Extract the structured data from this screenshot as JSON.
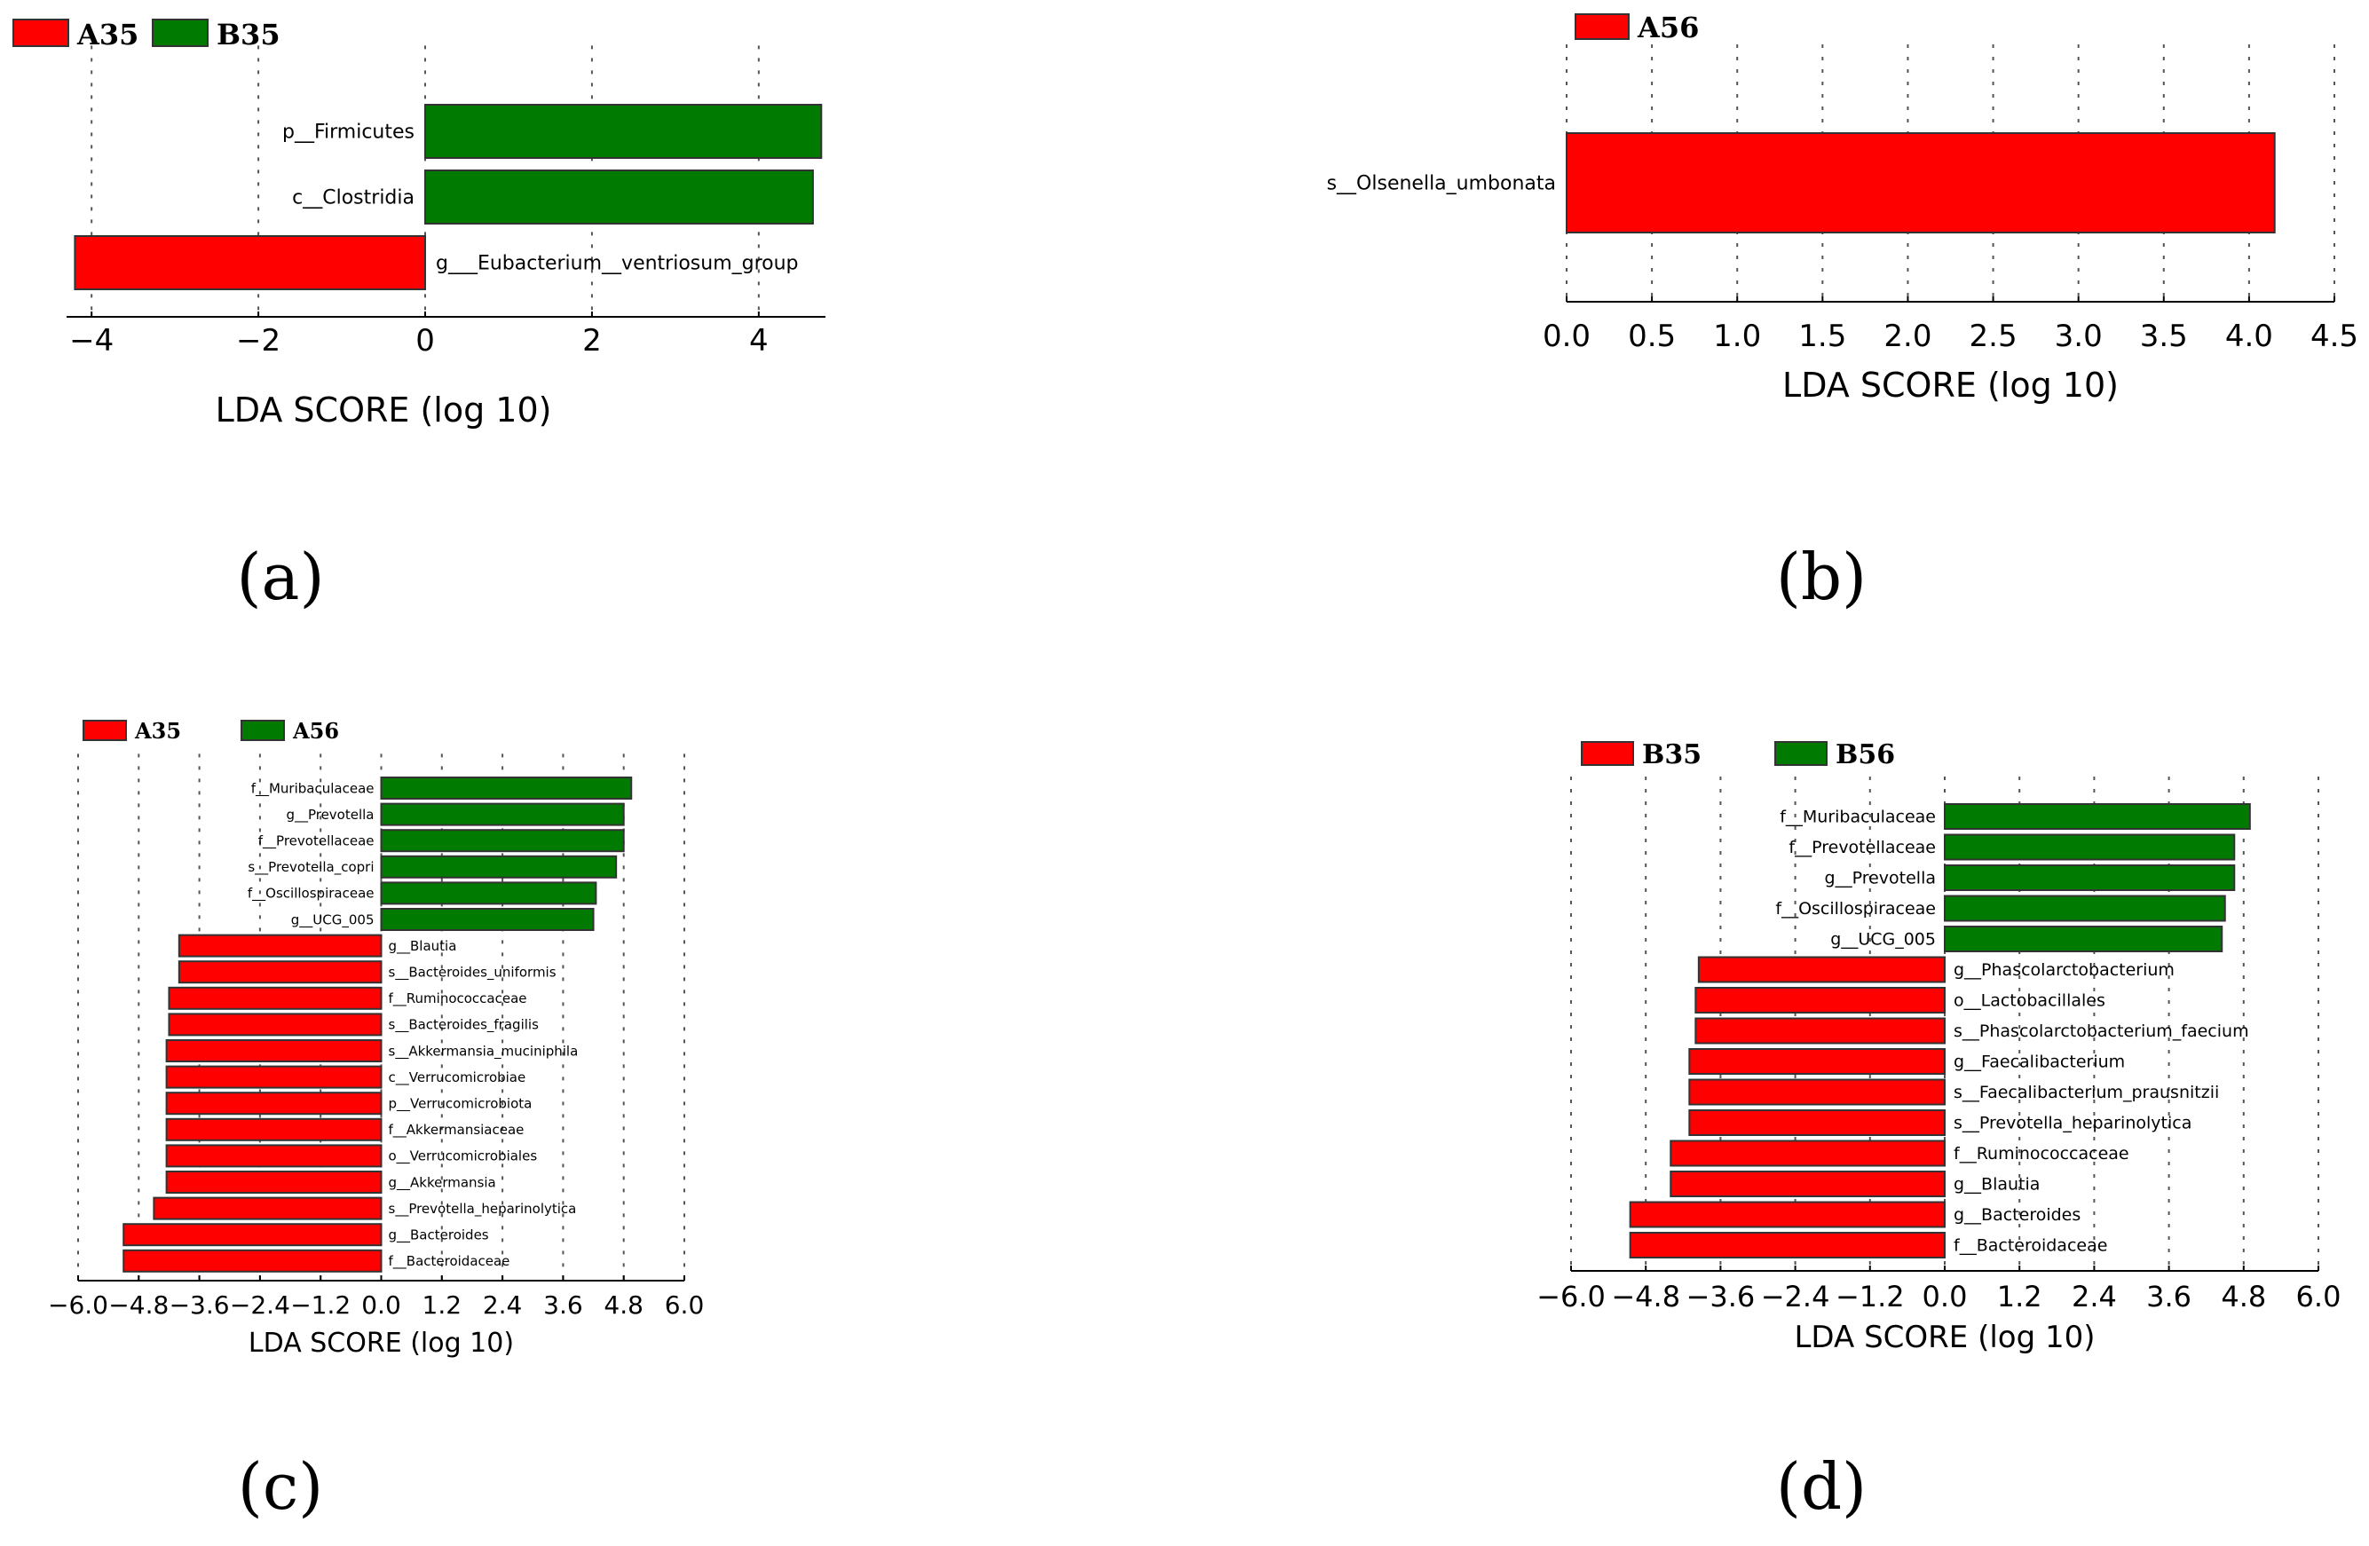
{
  "colors": {
    "red": "#ff0000",
    "green": "#007a00"
  },
  "chart_data": [
    {
      "panel": "(a)",
      "type": "bar",
      "orientation": "horizontal",
      "legend": [
        {
          "name": "A35",
          "color": "#ff0000"
        },
        {
          "name": "B35",
          "color": "#007a00"
        }
      ],
      "categories": [
        "p__Firmicutes",
        "c__Clostridia",
        "g___Eubacterium__ventriosum_group"
      ],
      "values": [
        4.75,
        4.65,
        -4.2
      ],
      "xlim": [
        -4.3,
        4.8
      ],
      "xticks": [
        -4,
        -2,
        0,
        2,
        4
      ],
      "xticklabels": [
        "−4",
        "−2",
        "0",
        "2",
        "4"
      ],
      "xlabel": "LDA SCORE (log 10)"
    },
    {
      "panel": "(b)",
      "type": "bar",
      "orientation": "horizontal",
      "legend": [
        {
          "name": "A56",
          "color": "#ff0000"
        }
      ],
      "categories": [
        "s__Olsenella_umbonata"
      ],
      "values": [
        4.15
      ],
      "xlim": [
        0.0,
        4.5
      ],
      "xticks": [
        0,
        0.5,
        1,
        1.5,
        2,
        2.5,
        3,
        3.5,
        4,
        4.5
      ],
      "xticklabels": [
        "0.0",
        "0.5",
        "1.0",
        "1.5",
        "2.0",
        "2.5",
        "3.0",
        "3.5",
        "4.0",
        "4.5"
      ],
      "xlabel": "LDA SCORE (log 10)"
    },
    {
      "panel": "(c)",
      "type": "bar",
      "orientation": "horizontal",
      "legend": [
        {
          "name": "A35",
          "color": "#ff0000"
        },
        {
          "name": "A56",
          "color": "#007a00"
        }
      ],
      "categories": [
        "f__Muribaculaceae",
        "g__Prevotella",
        "f__Prevotellaceae",
        "s__Prevotella_copri",
        "f__Oscillospiraceae",
        "g__UCG_005",
        "g__Blautia",
        "s__Bacteroides_uniformis",
        "f__Ruminococcaceae",
        "s__Bacteroides_fragilis",
        "s__Akkermansia_muciniphila",
        "c__Verrucomicrobiae",
        "p__Verrucomicrobiota",
        "f__Akkermansiaceae",
        "o__Verrucomicrobiales",
        "g__Akkermansia",
        "s__Prevotella_heparinolytica",
        "g__Bacteroides",
        "f__Bacteroidaceae"
      ],
      "values": [
        4.95,
        4.8,
        4.8,
        4.65,
        4.25,
        4.2,
        -4.0,
        -4.0,
        -4.2,
        -4.2,
        -4.25,
        -4.25,
        -4.25,
        -4.25,
        -4.25,
        -4.25,
        -4.5,
        -5.1,
        -5.1
      ],
      "xlim": [
        -6.0,
        6.0
      ],
      "xticks": [
        -6.0,
        -4.8,
        -3.6,
        -2.4,
        -1.2,
        0.0,
        1.2,
        2.4,
        3.6,
        4.8,
        6.0
      ],
      "xticklabels": [
        "−6.0",
        "−4.8",
        "−3.6",
        "−2.4",
        "−1.2",
        "0.0",
        "1.2",
        "2.4",
        "3.6",
        "4.8",
        "6.0"
      ],
      "xlabel": "LDA SCORE (log 10)"
    },
    {
      "panel": "(d)",
      "type": "bar",
      "orientation": "horizontal",
      "legend": [
        {
          "name": "B35",
          "color": "#ff0000"
        },
        {
          "name": "B56",
          "color": "#007a00"
        }
      ],
      "categories": [
        "f__Muribaculaceae",
        "f__Prevotellaceae",
        "g__Prevotella",
        "f__Oscillospiraceae",
        "g__UCG_005",
        "g__Phascolarctobacterium",
        "o__Lactobacillales",
        "s__Phascolarctobacterium_faecium",
        "g__Faecalibacterium",
        "s__Faecalibacterium_prausnitzii",
        "s__Prevotella_heparinolytica",
        "f__Ruminococcaceae",
        "g__Blautia",
        "g__Bacteroides",
        "f__Bacteroidaceae"
      ],
      "values": [
        4.9,
        4.65,
        4.65,
        4.5,
        4.45,
        -3.95,
        -4.0,
        -4.0,
        -4.1,
        -4.1,
        -4.1,
        -4.4,
        -4.4,
        -5.05,
        -5.05
      ],
      "xlim": [
        -6.0,
        6.0
      ],
      "xticks": [
        -6.0,
        -4.8,
        -3.6,
        -2.4,
        -1.2,
        0.0,
        1.2,
        2.4,
        3.6,
        4.8,
        6.0
      ],
      "xticklabels": [
        "−6.0",
        "−4.8",
        "−3.6",
        "−2.4",
        "−1.2",
        "0.0",
        "1.2",
        "2.4",
        "3.6",
        "4.8",
        "6.0"
      ],
      "xlabel": "LDA SCORE (log 10)"
    }
  ]
}
